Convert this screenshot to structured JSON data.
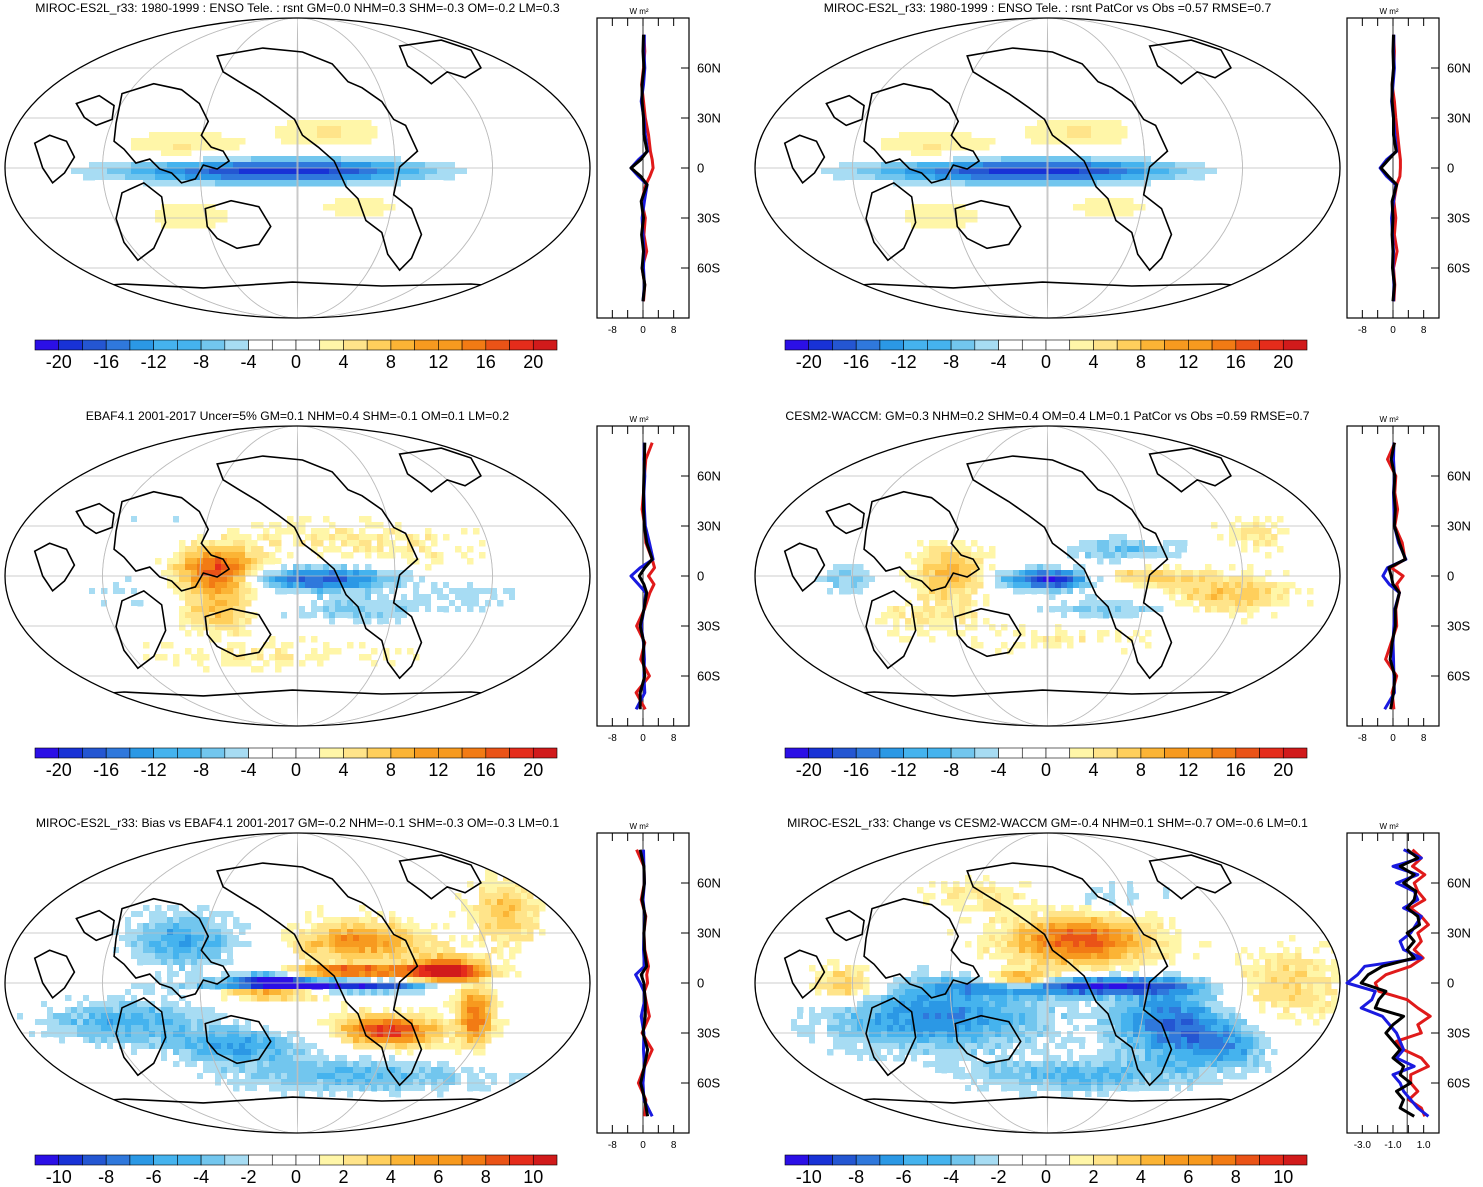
{
  "palette": {
    "diverging": [
      "#2b0fe6",
      "#1832d6",
      "#2456d2",
      "#2f78dc",
      "#2b98e5",
      "#45b3ee",
      "#72c6ee",
      "#a7dcf3",
      "#ffffff",
      "#ffffff",
      "#fff6a8",
      "#ffe48a",
      "#ffcf5c",
      "#fbb435",
      "#f79a1f",
      "#f27b14",
      "#ea5317",
      "#e52c1b",
      "#d11a1b"
    ],
    "zonal_model": "#e01a1a",
    "zonal_obs": "#1a1ae0",
    "zonal_diff": "#000000",
    "coast": "#000000",
    "grid": "#bdbdbd"
  },
  "units": "W m²",
  "lat_labels": [
    "60N",
    "30N",
    "0",
    "30S",
    "60S"
  ],
  "chart_data": [
    {
      "type": "map",
      "id": "model-map",
      "title": "MIROC-ES2L_r33: 1980-1999 : ENSO Tele. : rsnt GM=0.0 NHM=0.3 SHM=-0.3 OM=-0.2 LM=0.3",
      "colorbar_labels": [
        "-20",
        "-16",
        "-12",
        "-8",
        "-4",
        "0",
        "4",
        "8",
        "12",
        "16",
        "20"
      ],
      "colorbar_range": [
        -20,
        20
      ],
      "zonal": {
        "xlabels": [
          "-8",
          "0",
          "8"
        ],
        "xlim": [
          -10,
          10
        ],
        "lat": [
          80,
          70,
          60,
          50,
          40,
          30,
          20,
          10,
          5,
          0,
          -5,
          -10,
          -20,
          -30,
          -40,
          -50,
          -60,
          -70,
          -80
        ],
        "series": [
          {
            "name": "model",
            "color_key": "zonal_model",
            "values": [
              0.2,
              0.4,
              0.1,
              -0.3,
              0.1,
              0.5,
              1.2,
              1.6,
              2.0,
              2.2,
              1.5,
              0.6,
              -0.3,
              0.5,
              0.2,
              0.8,
              -0.2,
              0.4,
              0.1
            ]
          },
          {
            "name": "obs",
            "color_key": "zonal_obs",
            "values": [
              0.3,
              0.2,
              0.4,
              0.1,
              -0.4,
              0.2,
              0.5,
              1.0,
              -1.0,
              -2.6,
              -1.0,
              0.9,
              0.3,
              -0.2,
              0.0,
              0.2,
              0.1,
              0.3,
              0.0
            ]
          },
          {
            "name": "diff",
            "color_key": "zonal_diff",
            "values": [
              0.1,
              0.0,
              0.2,
              -0.2,
              -0.2,
              0.1,
              0.2,
              0.9,
              -0.5,
              -2.6,
              -0.5,
              0.9,
              -0.4,
              0.1,
              -0.3,
              0.1,
              -0.2,
              0.4,
              0.0
            ]
          }
        ]
      }
    },
    {
      "type": "map",
      "id": "model-map-2",
      "title": "MIROC-ES2L_r33: 1980-1999 : ENSO Tele. : rsnt PatCor vs Obs =0.57 RMSE=0.7",
      "colorbar_labels": [
        "-20",
        "-16",
        "-12",
        "-8",
        "-4",
        "0",
        "4",
        "8",
        "12",
        "16",
        "20"
      ],
      "colorbar_range": [
        -20,
        20
      ],
      "zonal": {
        "xlabels": [
          "-8",
          "0",
          "8"
        ],
        "xlim": [
          -10,
          10
        ],
        "lat": [
          80,
          70,
          60,
          50,
          40,
          30,
          20,
          10,
          5,
          0,
          -5,
          -10,
          -20,
          -30,
          -40,
          -50,
          -60,
          -70,
          -80
        ],
        "series": [
          {
            "name": "model",
            "color_key": "zonal_model",
            "values": [
              0.1,
              0.3,
              0.2,
              -0.2,
              0.3,
              0.6,
              1.0,
              1.4,
              1.6,
              1.6,
              1.5,
              0.8,
              0.2,
              0.6,
              0.3,
              0.9,
              0.1,
              0.4,
              0.2
            ]
          },
          {
            "name": "obs",
            "color_key": "zonal_obs",
            "values": [
              0.2,
              0.1,
              0.3,
              0.0,
              -0.3,
              0.1,
              0.4,
              0.8,
              -1.4,
              -2.8,
              -1.4,
              0.6,
              0.1,
              -0.3,
              -0.1,
              0.1,
              0.0,
              0.2,
              0.1
            ]
          },
          {
            "name": "diff",
            "color_key": "zonal_diff",
            "values": [
              0.1,
              0.0,
              0.1,
              -0.2,
              -0.2,
              0.1,
              0.1,
              0.7,
              -1.0,
              -2.6,
              -1.0,
              0.8,
              -0.2,
              0.0,
              -0.2,
              0.0,
              -0.1,
              0.3,
              0.0
            ]
          }
        ]
      }
    },
    {
      "type": "map",
      "id": "obs-map",
      "title": "EBAF4.1 2001-2017 Uncer=5% GM=0.1 NHM=0.4 SHM=-0.1 OM=0.1 LM=0.2",
      "colorbar_labels": [
        "-20",
        "-16",
        "-12",
        "-8",
        "-4",
        "0",
        "4",
        "8",
        "12",
        "16",
        "20"
      ],
      "colorbar_range": [
        -20,
        20
      ],
      "zonal": {
        "xlabels": [
          "-8",
          "0",
          "8"
        ],
        "xlim": [
          -10,
          10
        ],
        "lat": [
          80,
          70,
          60,
          50,
          40,
          30,
          20,
          10,
          5,
          0,
          -5,
          -10,
          -20,
          -30,
          -40,
          -50,
          -60,
          -70,
          -80
        ],
        "series": [
          {
            "name": "model",
            "color_key": "zonal_model",
            "values": [
              2.0,
              0.6,
              0.3,
              0.1,
              -0.2,
              0.4,
              0.6,
              2.0,
              2.5,
              1.2,
              2.4,
              1.5,
              0.3,
              -1.4,
              0.4,
              -0.5,
              1.4,
              -1.5,
              0.5
            ]
          },
          {
            "name": "obs",
            "color_key": "zonal_obs",
            "values": [
              0.3,
              0.2,
              0.4,
              0.2,
              0.3,
              0.5,
              1.4,
              2.2,
              -0.6,
              -2.6,
              -1.0,
              0.6,
              0.2,
              -0.4,
              0.1,
              0.3,
              0.2,
              0.4,
              -1.5
            ]
          },
          {
            "name": "diff",
            "color_key": "zonal_diff",
            "values": [
              0.4,
              0.3,
              0.2,
              0.1,
              0.1,
              0.3,
              0.8,
              2.0,
              0.4,
              -0.8,
              0.2,
              0.8,
              0.2,
              -0.6,
              0.2,
              0.0,
              0.4,
              -0.6,
              -0.6
            ]
          }
        ]
      }
    },
    {
      "type": "map",
      "id": "ref-model-map",
      "title": "CESM2-WACCM: GM=0.3 NHM=0.2 SHM=0.4 OM=0.4 LM=0.1 PatCor vs Obs =0.59 RMSE=0.7",
      "colorbar_labels": [
        "-20",
        "-16",
        "-12",
        "-8",
        "-4",
        "0",
        "4",
        "8",
        "12",
        "16",
        "20"
      ],
      "colorbar_range": [
        -20,
        20
      ],
      "zonal": {
        "xlabels": [
          "-8",
          "0",
          "8"
        ],
        "xlim": [
          -10,
          10
        ],
        "lat": [
          80,
          70,
          60,
          50,
          40,
          30,
          20,
          10,
          5,
          0,
          -5,
          -10,
          -20,
          -30,
          -40,
          -50,
          -60,
          -70,
          -80
        ],
        "series": [
          {
            "name": "model",
            "color_key": "zonal_model",
            "values": [
              0.4,
              -1.2,
              0.6,
              0.4,
              1.0,
              0.4,
              2.0,
              2.6,
              -0.4,
              2.2,
              0.8,
              1.4,
              0.6,
              0.8,
              -0.4,
              -1.6,
              0.8,
              -0.2,
              0.2
            ]
          },
          {
            "name": "obs",
            "color_key": "zonal_obs",
            "values": [
              0.2,
              0.1,
              0.3,
              0.1,
              0.2,
              0.3,
              1.2,
              2.8,
              -1.2,
              -2.2,
              -0.8,
              1.4,
              0.4,
              0.2,
              0.0,
              0.1,
              0.2,
              0.3,
              -1.8
            ]
          },
          {
            "name": "diff",
            "color_key": "zonal_diff",
            "values": [
              0.3,
              -0.4,
              0.4,
              0.2,
              0.5,
              0.3,
              1.4,
              2.7,
              -0.9,
              -0.4,
              0.0,
              1.4,
              0.5,
              0.5,
              -0.2,
              -0.6,
              0.4,
              0.1,
              -0.5
            ]
          }
        ]
      }
    },
    {
      "type": "map",
      "id": "bias-map",
      "title": "MIROC-ES2L_r33: Bias vs EBAF4.1 2001-2017 GM=-0.2 NHM=-0.1 SHM=-0.3 OM=-0.3 LM=0.1",
      "colorbar_labels": [
        "-10",
        "-8",
        "-6",
        "-4",
        "-2",
        "0",
        "2",
        "4",
        "6",
        "8",
        "10"
      ],
      "colorbar_range": [
        -10,
        10
      ],
      "zonal": {
        "xlabels": [
          "-8",
          "0",
          "8"
        ],
        "xlim": [
          -10,
          10
        ],
        "lat": [
          80,
          70,
          60,
          50,
          40,
          30,
          20,
          10,
          5,
          0,
          -5,
          -10,
          -20,
          -30,
          -40,
          -50,
          -60,
          -70,
          -80
        ],
        "series": [
          {
            "name": "model",
            "color_key": "zonal_model",
            "values": [
              -1.4,
              0.2,
              0.3,
              -0.4,
              0.6,
              0.2,
              0.4,
              1.2,
              0.8,
              1.0,
              0.3,
              0.6,
              1.4,
              -0.2,
              2.0,
              0.4,
              -1.0,
              0.6,
              0.4
            ]
          },
          {
            "name": "obs",
            "color_key": "zonal_obs",
            "values": [
              0.1,
              0.2,
              0.3,
              0.0,
              0.4,
              0.2,
              0.1,
              0.3,
              -1.6,
              -0.6,
              0.2,
              0.4,
              -0.4,
              0.2,
              0.1,
              0.3,
              0.0,
              0.2,
              2.0
            ]
          },
          {
            "name": "diff",
            "color_key": "zonal_diff",
            "values": [
              -0.6,
              0.2,
              0.3,
              -0.2,
              0.5,
              0.2,
              0.3,
              0.8,
              -0.4,
              0.2,
              0.3,
              0.5,
              0.5,
              0.0,
              1.0,
              0.3,
              -0.5,
              0.4,
              1.0
            ]
          }
        ]
      }
    },
    {
      "type": "map",
      "id": "change-map",
      "title": "MIROC-ES2L_r33: Change vs CESM2-WACCM GM=-0.4 NHM=0.1 SHM=-0.7 OM=-0.6 LM=0.1",
      "colorbar_labels": [
        "-10",
        "-8",
        "-6",
        "-4",
        "-2",
        "0",
        "2",
        "4",
        "6",
        "8",
        "10"
      ],
      "colorbar_range": [
        -10,
        10
      ],
      "zonal": {
        "xlabels": [
          "-3.0",
          "-1.0",
          "1.0"
        ],
        "xlim": [
          -3.4,
          1.8
        ],
        "lat": [
          80,
          75,
          70,
          65,
          60,
          55,
          50,
          45,
          40,
          35,
          30,
          25,
          20,
          15,
          10,
          5,
          0,
          -5,
          -10,
          -15,
          -20,
          -25,
          -30,
          -35,
          -40,
          -45,
          -50,
          -55,
          -60,
          -65,
          -70,
          -75,
          -80
        ],
        "series": [
          {
            "name": "model",
            "color_key": "zonal_model",
            "values": [
              0.3,
              0.8,
              0.3,
              1.0,
              0.4,
              0.6,
              1.0,
              0.2,
              0.8,
              1.2,
              0.6,
              0.8,
              0.4,
              0.9,
              0.2,
              -1.2,
              -1.8,
              -1.6,
              0.0,
              0.6,
              1.3,
              0.6,
              0.8,
              -0.6,
              -0.2,
              0.8,
              1.2,
              0.2,
              0.2,
              0.6,
              0.1,
              0.8,
              1.0
            ]
          },
          {
            "name": "obs",
            "color_key": "zonal_obs",
            "values": [
              -0.2,
              0.8,
              -0.8,
              0.6,
              -0.6,
              0.4,
              0.6,
              -0.2,
              0.8,
              0.5,
              0.2,
              -0.4,
              -0.2,
              0.8,
              -2.4,
              -2.8,
              -3.4,
              -1.8,
              -2.0,
              -2.6,
              -1.4,
              -1.0,
              -0.6,
              -0.4,
              -0.2,
              -0.6,
              0.4,
              -0.8,
              -0.4,
              -0.2,
              0.2,
              0.6,
              1.2
            ]
          },
          {
            "name": "diff",
            "color_key": "zonal_diff",
            "values": [
              0.0,
              0.6,
              -0.4,
              0.4,
              -0.2,
              0.5,
              0.4,
              0.0,
              0.6,
              0.7,
              0.0,
              0.4,
              0.0,
              0.4,
              -1.4,
              -2.2,
              -2.6,
              -1.2,
              -1.6,
              -1.8,
              -0.2,
              -0.8,
              -1.2,
              -0.8,
              -0.4,
              -0.8,
              -0.2,
              -0.4,
              0.2,
              -0.6,
              -0.2,
              -0.4,
              0.4
            ]
          }
        ]
      }
    }
  ]
}
